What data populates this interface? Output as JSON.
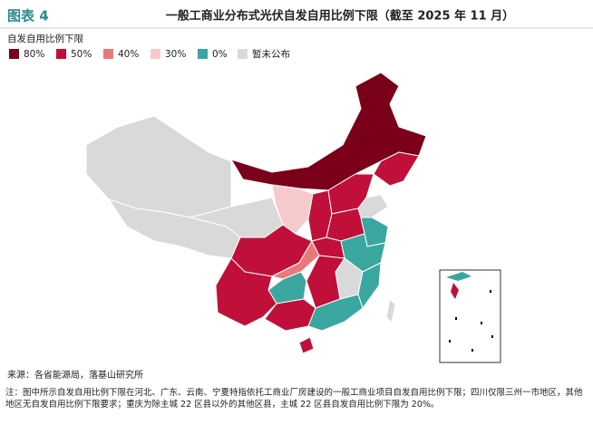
{
  "header": {
    "badge": "图表 4",
    "title": "一般工商业分布式光伏自发自用比例下限（截至 2025 年 11 月）"
  },
  "legend": {
    "title": "自发自用比例下限",
    "items": [
      {
        "label": "80%",
        "color": "#7a0019"
      },
      {
        "label": "50%",
        "color": "#c0103a"
      },
      {
        "label": "40%",
        "color": "#e8797a"
      },
      {
        "label": "30%",
        "color": "#f6caca"
      },
      {
        "label": "0%",
        "color": "#3aa6a0"
      },
      {
        "label": "暂未公布",
        "color": "#d9d9d9"
      }
    ]
  },
  "footer": {
    "source": "来源：各省能源局，落基山研究所",
    "note": "注：图中所示自发自用比例下限在河北、广东、云南、宁夏特指依托工商业厂房建设的一般工商业项目自发自用比例下限；四川仅限三州一市地区，其他地区无自发自用比例下限要求；重庆为除主城 22 区县以外的其他区县，主城 22 区县自发自用比例下限为 20%。"
  }
}
